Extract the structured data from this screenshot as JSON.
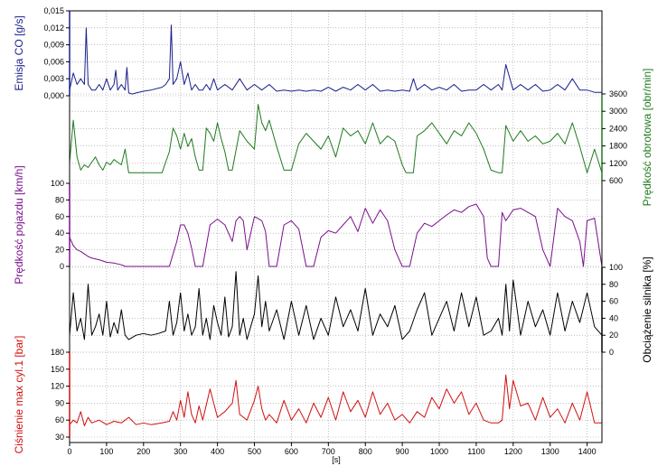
{
  "chart_data": {
    "type": "line",
    "x_unit": "[s]",
    "x_range": [
      0,
      1440
    ],
    "x_ticks": [
      "0",
      "100",
      "200",
      "300",
      "400",
      "500",
      "600",
      "700",
      "800",
      "900",
      "1000",
      "1100",
      "1200",
      "1300",
      "1400"
    ],
    "grid": true,
    "series": [
      {
        "name": "Emisja CO [g/s]",
        "axis_label": "Emisja CO [g/s]",
        "color": "#1a1f8c",
        "axis_side": "left",
        "ylim": [
          0,
          0.015
        ],
        "ticks": [
          "0,000",
          "0,003",
          "0,006",
          "0,009",
          "0,012",
          "0,015"
        ],
        "x": [
          0,
          10,
          20,
          30,
          40,
          45,
          50,
          60,
          70,
          80,
          90,
          100,
          110,
          120,
          125,
          130,
          140,
          150,
          155,
          160,
          170,
          180,
          200,
          220,
          250,
          260,
          270,
          275,
          280,
          290,
          300,
          310,
          320,
          330,
          340,
          350,
          360,
          370,
          380,
          390,
          400,
          420,
          440,
          460,
          480,
          500,
          520,
          540,
          560,
          580,
          600,
          620,
          640,
          660,
          680,
          700,
          720,
          740,
          760,
          780,
          800,
          820,
          840,
          860,
          880,
          900,
          920,
          930,
          940,
          960,
          980,
          1000,
          1020,
          1040,
          1060,
          1080,
          1100,
          1120,
          1140,
          1160,
          1170,
          1180,
          1200,
          1220,
          1240,
          1260,
          1280,
          1300,
          1320,
          1340,
          1360,
          1380,
          1400,
          1420,
          1440
        ],
        "values": [
          0.001,
          0.004,
          0.002,
          0.003,
          0.002,
          0.012,
          0.002,
          0.001,
          0.001,
          0.002,
          0.001,
          0.003,
          0.001,
          0.002,
          0.0045,
          0.001,
          0.002,
          0.001,
          0.005,
          0.0005,
          0.0003,
          0.0005,
          0.0008,
          0.001,
          0.0015,
          0.002,
          0.003,
          0.0125,
          0.002,
          0.003,
          0.006,
          0.002,
          0.004,
          0.001,
          0.002,
          0.001,
          0.001,
          0.002,
          0.001,
          0.003,
          0.001,
          0.002,
          0.001,
          0.003,
          0.001,
          0.002,
          0.001,
          0.002,
          0.0008,
          0.001,
          0.0008,
          0.001,
          0.0008,
          0.001,
          0.0008,
          0.0015,
          0.0008,
          0.0015,
          0.001,
          0.002,
          0.001,
          0.002,
          0.0008,
          0.001,
          0.0008,
          0.001,
          0.0008,
          0.003,
          0.001,
          0.002,
          0.001,
          0.0015,
          0.001,
          0.002,
          0.0008,
          0.001,
          0.001,
          0.002,
          0.001,
          0.002,
          0.001,
          0.0055,
          0.001,
          0.002,
          0.001,
          0.002,
          0.0008,
          0.001,
          0.002,
          0.001,
          0.003,
          0.001,
          0.001,
          0.0006,
          0.0006
        ]
      },
      {
        "name": "Prędkość obrotowa [obr/min]",
        "axis_label": "Prędkość obrotowa [obr/min]",
        "color": "#1f7a1f",
        "axis_side": "right",
        "ylim": [
          600,
          3900
        ],
        "ticks": [
          "600",
          "1200",
          "1800",
          "2400",
          "3000",
          "3600"
        ],
        "x": [
          0,
          10,
          20,
          30,
          40,
          50,
          60,
          70,
          80,
          90,
          100,
          110,
          120,
          130,
          140,
          150,
          160,
          170,
          180,
          190,
          200,
          220,
          240,
          250,
          260,
          270,
          280,
          290,
          300,
          310,
          320,
          330,
          340,
          350,
          360,
          370,
          380,
          390,
          400,
          410,
          420,
          430,
          440,
          460,
          480,
          500,
          510,
          520,
          530,
          540,
          560,
          580,
          600,
          620,
          640,
          660,
          680,
          700,
          720,
          740,
          760,
          780,
          800,
          820,
          840,
          860,
          880,
          900,
          910,
          920,
          930,
          940,
          960,
          980,
          1000,
          1020,
          1040,
          1060,
          1080,
          1100,
          1110,
          1120,
          1140,
          1160,
          1170,
          1180,
          1200,
          1220,
          1240,
          1260,
          1280,
          1300,
          1320,
          1340,
          1360,
          1380,
          1400,
          1420,
          1440
        ],
        "values": [
          1300,
          2900,
          1500,
          1000,
          1200,
          1100,
          1300,
          1500,
          1200,
          1000,
          1300,
          1200,
          1400,
          1300,
          1200,
          1800,
          900,
          900,
          900,
          900,
          900,
          900,
          900,
          900,
          1300,
          1700,
          2600,
          2300,
          1800,
          2400,
          1900,
          2200,
          1500,
          1000,
          1000,
          2600,
          2400,
          2100,
          2800,
          2200,
          1700,
          1000,
          1000,
          2500,
          2100,
          1800,
          3500,
          2800,
          2500,
          2900,
          1900,
          1000,
          1000,
          2000,
          2400,
          2100,
          1800,
          2300,
          1500,
          2600,
          2300,
          2500,
          2000,
          2800,
          2000,
          2300,
          2100,
          1200,
          900,
          900,
          900,
          2300,
          2500,
          2800,
          2400,
          2000,
          2500,
          2300,
          2800,
          2400,
          2100,
          1800,
          1000,
          900,
          900,
          2700,
          2100,
          2500,
          2100,
          2300,
          2000,
          2100,
          2400,
          2000,
          2800,
          1900,
          900,
          1800,
          900
        ]
      },
      {
        "name": "Prędkość pojazdu [km/h]",
        "axis_label": "Prędkość pojazdu [km/h]",
        "color": "#7a0f8c",
        "axis_side": "left",
        "ylim": [
          0,
          100
        ],
        "ticks": [
          "0",
          "20",
          "40",
          "60",
          "80",
          "100"
        ],
        "x": [
          0,
          10,
          20,
          30,
          40,
          50,
          60,
          80,
          100,
          120,
          140,
          150,
          160,
          170,
          180,
          200,
          220,
          250,
          270,
          280,
          290,
          300,
          310,
          320,
          330,
          340,
          360,
          380,
          400,
          420,
          440,
          450,
          460,
          470,
          480,
          500,
          520,
          530,
          540,
          560,
          580,
          600,
          620,
          640,
          660,
          680,
          700,
          720,
          740,
          760,
          780,
          800,
          820,
          840,
          860,
          880,
          900,
          910,
          920,
          940,
          960,
          980,
          1000,
          1020,
          1040,
          1060,
          1080,
          1100,
          1120,
          1130,
          1140,
          1160,
          1170,
          1180,
          1200,
          1220,
          1240,
          1260,
          1280,
          1300,
          1320,
          1340,
          1360,
          1380,
          1390,
          1400,
          1420,
          1440
        ],
        "values": [
          35,
          25,
          20,
          18,
          15,
          12,
          10,
          8,
          5,
          4,
          2,
          0,
          0,
          0,
          0,
          0,
          0,
          0,
          0,
          15,
          30,
          50,
          50,
          40,
          22,
          0,
          0,
          50,
          57,
          50,
          30,
          55,
          60,
          55,
          20,
          60,
          55,
          42,
          0,
          0,
          50,
          55,
          45,
          0,
          0,
          35,
          43,
          40,
          50,
          60,
          42,
          70,
          52,
          68,
          55,
          20,
          0,
          0,
          0,
          40,
          52,
          48,
          55,
          62,
          68,
          65,
          72,
          75,
          60,
          10,
          0,
          0,
          65,
          55,
          68,
          70,
          65,
          60,
          20,
          0,
          70,
          60,
          55,
          30,
          0,
          55,
          58,
          0
        ]
      },
      {
        "name": "Obciążenie silnika [%]",
        "axis_label": "Obciążenie silnika [%]",
        "color": "#000000",
        "axis_side": "right",
        "ylim": [
          0,
          100
        ],
        "ticks": [
          "0",
          "20",
          "40",
          "60",
          "80",
          "100"
        ],
        "x": [
          0,
          10,
          20,
          30,
          40,
          50,
          60,
          70,
          80,
          90,
          100,
          110,
          120,
          130,
          140,
          150,
          160,
          180,
          200,
          220,
          240,
          260,
          270,
          280,
          290,
          300,
          310,
          320,
          330,
          340,
          350,
          360,
          370,
          380,
          390,
          400,
          410,
          420,
          430,
          440,
          450,
          460,
          470,
          480,
          500,
          510,
          520,
          530,
          540,
          560,
          580,
          600,
          620,
          640,
          660,
          680,
          700,
          720,
          740,
          760,
          780,
          800,
          820,
          840,
          860,
          880,
          900,
          920,
          940,
          960,
          980,
          1000,
          1020,
          1040,
          1060,
          1080,
          1100,
          1120,
          1140,
          1160,
          1170,
          1180,
          1190,
          1200,
          1220,
          1240,
          1260,
          1280,
          1300,
          1320,
          1340,
          1360,
          1380,
          1400,
          1420,
          1440
        ],
        "values": [
          20,
          70,
          25,
          40,
          15,
          80,
          20,
          30,
          45,
          20,
          60,
          18,
          35,
          22,
          50,
          20,
          15,
          20,
          22,
          20,
          22,
          25,
          60,
          20,
          35,
          70,
          25,
          45,
          20,
          30,
          75,
          20,
          40,
          15,
          55,
          35,
          20,
          65,
          18,
          30,
          95,
          20,
          40,
          15,
          45,
          90,
          30,
          60,
          25,
          50,
          15,
          60,
          20,
          55,
          15,
          40,
          20,
          65,
          30,
          50,
          25,
          75,
          20,
          45,
          30,
          55,
          15,
          25,
          50,
          70,
          20,
          40,
          60,
          25,
          70,
          30,
          65,
          20,
          25,
          40,
          20,
          80,
          25,
          85,
          20,
          60,
          30,
          50,
          20,
          70,
          25,
          60,
          35,
          70,
          30,
          20
        ]
      },
      {
        "name": "Ciśnienie max cyl.1 [bar]",
        "axis_label": "Ciśnienie max cyl.1 [bar]",
        "color": "#d01010",
        "axis_side": "left",
        "ylim": [
          30,
          180
        ],
        "ticks": [
          "30",
          "60",
          "90",
          "120",
          "150",
          "180"
        ],
        "x": [
          0,
          10,
          20,
          30,
          40,
          50,
          60,
          80,
          100,
          120,
          140,
          160,
          180,
          200,
          220,
          250,
          270,
          280,
          290,
          300,
          310,
          320,
          330,
          340,
          350,
          360,
          380,
          400,
          420,
          440,
          450,
          460,
          480,
          500,
          510,
          520,
          530,
          540,
          560,
          580,
          600,
          620,
          640,
          660,
          680,
          700,
          720,
          740,
          760,
          780,
          800,
          820,
          840,
          860,
          880,
          900,
          920,
          940,
          960,
          980,
          1000,
          1020,
          1040,
          1060,
          1080,
          1100,
          1120,
          1140,
          1160,
          1170,
          1180,
          1190,
          1200,
          1220,
          1240,
          1260,
          1280,
          1300,
          1320,
          1340,
          1360,
          1380,
          1400,
          1420,
          1440
        ],
        "values": [
          52,
          60,
          55,
          75,
          50,
          65,
          55,
          60,
          52,
          58,
          55,
          65,
          52,
          55,
          52,
          55,
          58,
          75,
          60,
          95,
          65,
          110,
          70,
          55,
          85,
          60,
          115,
          65,
          75,
          90,
          130,
          70,
          60,
          95,
          120,
          80,
          60,
          70,
          55,
          95,
          60,
          80,
          55,
          90,
          65,
          100,
          60,
          110,
          75,
          95,
          65,
          110,
          70,
          90,
          60,
          70,
          55,
          75,
          65,
          100,
          80,
          115,
          90,
          110,
          70,
          90,
          60,
          55,
          55,
          60,
          140,
          80,
          130,
          85,
          90,
          60,
          100,
          65,
          80,
          55,
          90,
          60,
          110,
          55,
          55
        ]
      }
    ]
  }
}
